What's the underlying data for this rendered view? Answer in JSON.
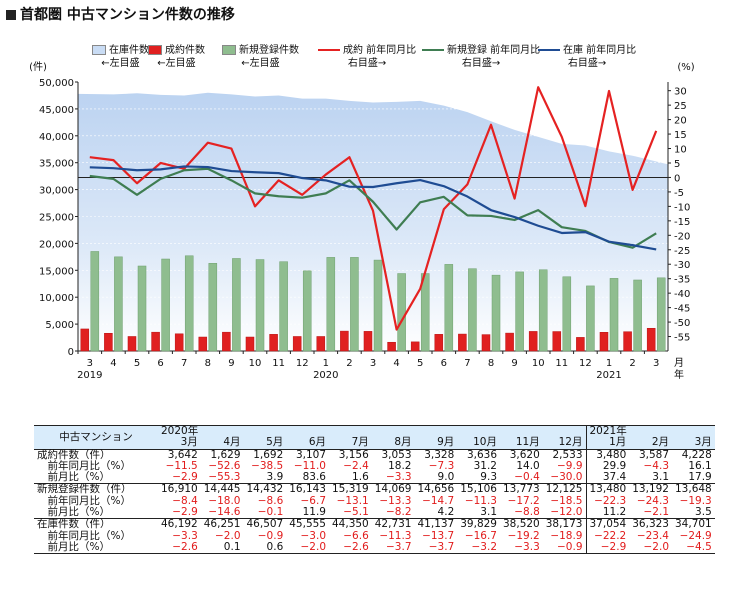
{
  "title": "首都圏 中古マンション件数の推移",
  "legend": [
    {
      "label": "在庫件数",
      "sub": "←左目盛",
      "color": "#c9dcf4",
      "kind": "area"
    },
    {
      "label": "成約件数",
      "sub": "←左目盛",
      "color": "#e02020",
      "kind": "bar"
    },
    {
      "label": "新規登録件数",
      "sub": "←左目盛",
      "color": "#8fbd8f",
      "kind": "bar"
    },
    {
      "label": "成約 前年同月比",
      "sub": "右目盛→",
      "color": "#e52222",
      "kind": "line"
    },
    {
      "label": "新規登録 前年同月比",
      "sub": "右目盛→",
      "color": "#3f7d52",
      "kind": "line"
    },
    {
      "label": "在庫 前年同月比",
      "sub": "右目盛→",
      "color": "#1f4c93",
      "kind": "line"
    }
  ],
  "chart_data": {
    "type": "bar",
    "left_unit": "(件)",
    "right_unit": "(%)",
    "x_unit": "月\n年",
    "categories": [
      "3",
      "4",
      "5",
      "6",
      "7",
      "8",
      "9",
      "10",
      "11",
      "12",
      "1",
      "2",
      "3",
      "4",
      "5",
      "6",
      "7",
      "8",
      "9",
      "10",
      "11",
      "12",
      "1",
      "2",
      "3"
    ],
    "year_labels": [
      {
        "index": 0,
        "label": "2019"
      },
      {
        "index": 10,
        "label": "2020"
      },
      {
        "index": 22,
        "label": "2021"
      }
    ],
    "left_axis": {
      "min": 0,
      "max": 50000,
      "ticks": [
        "0",
        "5,000",
        "10,000",
        "15,000",
        "20,000",
        "25,000",
        "30,000",
        "35,000",
        "40,000",
        "45,000",
        "50,000"
      ]
    },
    "right_axis": {
      "min": -60,
      "max": 33,
      "ticks": [
        "30",
        "25",
        "20",
        "15",
        "10",
        "5",
        "0",
        "-5",
        "-10",
        "-15",
        "-20",
        "-25",
        "-30",
        "-35",
        "-40",
        "-45",
        "-50",
        "-55"
      ]
    },
    "series": [
      {
        "name": "在庫件数",
        "kind": "area",
        "values": [
          47800,
          47700,
          47900,
          47600,
          47500,
          48000,
          47700,
          47300,
          47500,
          46900,
          46900,
          46500,
          46200,
          46300,
          46500,
          45600,
          44400,
          42700,
          41100,
          39800,
          38500,
          38200,
          37100,
          36300,
          34700
        ]
      },
      {
        "name": "成約件数",
        "kind": "bar",
        "values": [
          4100,
          3300,
          2700,
          3500,
          3200,
          2600,
          3500,
          2600,
          3100,
          2700,
          2700,
          3700,
          3650,
          1630,
          1700,
          3100,
          3150,
          3050,
          3330,
          3640,
          3620,
          2530,
          3480,
          3590,
          4230
        ]
      },
      {
        "name": "新規登録件数",
        "kind": "bar",
        "values": [
          18500,
          17500,
          15800,
          17100,
          17700,
          16300,
          17200,
          17000,
          16600,
          14900,
          17400,
          17400,
          16900,
          14400,
          14400,
          16100,
          15300,
          14100,
          14700,
          15100,
          13800,
          12100,
          13500,
          13200,
          13600
        ]
      },
      {
        "name": "成約 前年同月比",
        "kind": "line",
        "values": [
          7,
          6,
          -2,
          5,
          3,
          12,
          10,
          -10,
          -1,
          -6,
          1,
          7,
          -11.5,
          -52.6,
          -38.5,
          -11,
          -2.4,
          18.2,
          -7.3,
          31.2,
          14,
          -9.9,
          29.9,
          -4.3,
          16.1
        ]
      },
      {
        "name": "新規登録 前年同月比",
        "kind": "line",
        "values": [
          0.5,
          -0.5,
          -6,
          -0.5,
          2.5,
          3,
          -1,
          -5.5,
          -6.5,
          -7,
          -5.5,
          -1,
          -8.4,
          -18,
          -8.6,
          -6.7,
          -13.1,
          -13.3,
          -14.7,
          -11.3,
          -17.2,
          -18.5,
          -22.3,
          -24.3,
          -19.3
        ]
      },
      {
        "name": "在庫 前年同月比",
        "kind": "line",
        "values": [
          3.5,
          3.2,
          2.5,
          2.8,
          3.8,
          3.6,
          2.2,
          1.8,
          1.5,
          -0.2,
          -1,
          -3.2,
          -3.3,
          -2,
          -0.9,
          -3,
          -6.6,
          -11.3,
          -13.7,
          -16.7,
          -19.2,
          -18.9,
          -22.2,
          -23.4,
          -24.9
        ]
      }
    ]
  },
  "table": {
    "corner": "中古マンション",
    "year_2020": "2020年",
    "year_2021": "2021年",
    "months": [
      "3月",
      "4月",
      "5月",
      "6月",
      "7月",
      "8月",
      "9月",
      "10月",
      "11月",
      "12月",
      "1月",
      "2月",
      "3月"
    ],
    "rows": [
      {
        "label": "成約件数（件）",
        "values": [
          "3,642",
          "1,629",
          "1,692",
          "3,107",
          "3,156",
          "3,053",
          "3,328",
          "3,636",
          "3,620",
          "2,533",
          "3,480",
          "3,587",
          "4,228"
        ],
        "section_start": true
      },
      {
        "label": "　前年同月比（%）",
        "values": [
          "−11.5",
          "−52.6",
          "−38.5",
          "−11.0",
          "−2.4",
          "18.2",
          "−7.3",
          "31.2",
          "14.0",
          "−9.9",
          "29.9",
          "−4.3",
          "16.1"
        ]
      },
      {
        "label": "　前月比（%）",
        "values": [
          "−2.9",
          "−55.3",
          "3.9",
          "83.6",
          "1.6",
          "−3.3",
          "9.0",
          "9.3",
          "−0.4",
          "−30.0",
          "37.4",
          "3.1",
          "17.9"
        ]
      },
      {
        "label": "新規登録件数（件）",
        "values": [
          "16,910",
          "14,445",
          "14,432",
          "16,143",
          "15,319",
          "14,069",
          "14,656",
          "15,106",
          "13,773",
          "12,125",
          "13,480",
          "13,192",
          "13,648"
        ],
        "section_start": true
      },
      {
        "label": "　前年同月比（%）",
        "values": [
          "−8.4",
          "−18.0",
          "−8.6",
          "−6.7",
          "−13.1",
          "−13.3",
          "−14.7",
          "−11.3",
          "−17.2",
          "−18.5",
          "−22.3",
          "−24.3",
          "−19.3"
        ]
      },
      {
        "label": "　前月比（%）",
        "values": [
          "−2.9",
          "−14.6",
          "−0.1",
          "11.9",
          "−5.1",
          "−8.2",
          "4.2",
          "3.1",
          "−8.8",
          "−12.0",
          "11.2",
          "−2.1",
          "3.5"
        ]
      },
      {
        "label": "在庫件数（件）",
        "values": [
          "46,192",
          "46,251",
          "46,507",
          "45,555",
          "44,350",
          "42,731",
          "41,137",
          "39,829",
          "38,520",
          "38,173",
          "37,054",
          "36,323",
          "34,701"
        ],
        "section_start": true
      },
      {
        "label": "　前年同月比（%）",
        "values": [
          "−3.3",
          "−2.0",
          "−0.9",
          "−3.0",
          "−6.6",
          "−11.3",
          "−13.7",
          "−16.7",
          "−19.2",
          "−18.9",
          "−22.2",
          "−23.4",
          "−24.9"
        ]
      },
      {
        "label": "　前月比（%）",
        "values": [
          "−2.6",
          "0.1",
          "0.6",
          "−2.0",
          "−2.6",
          "−3.7",
          "−3.7",
          "−3.2",
          "−3.3",
          "−0.9",
          "−2.9",
          "−2.0",
          "−4.5"
        ]
      }
    ]
  }
}
